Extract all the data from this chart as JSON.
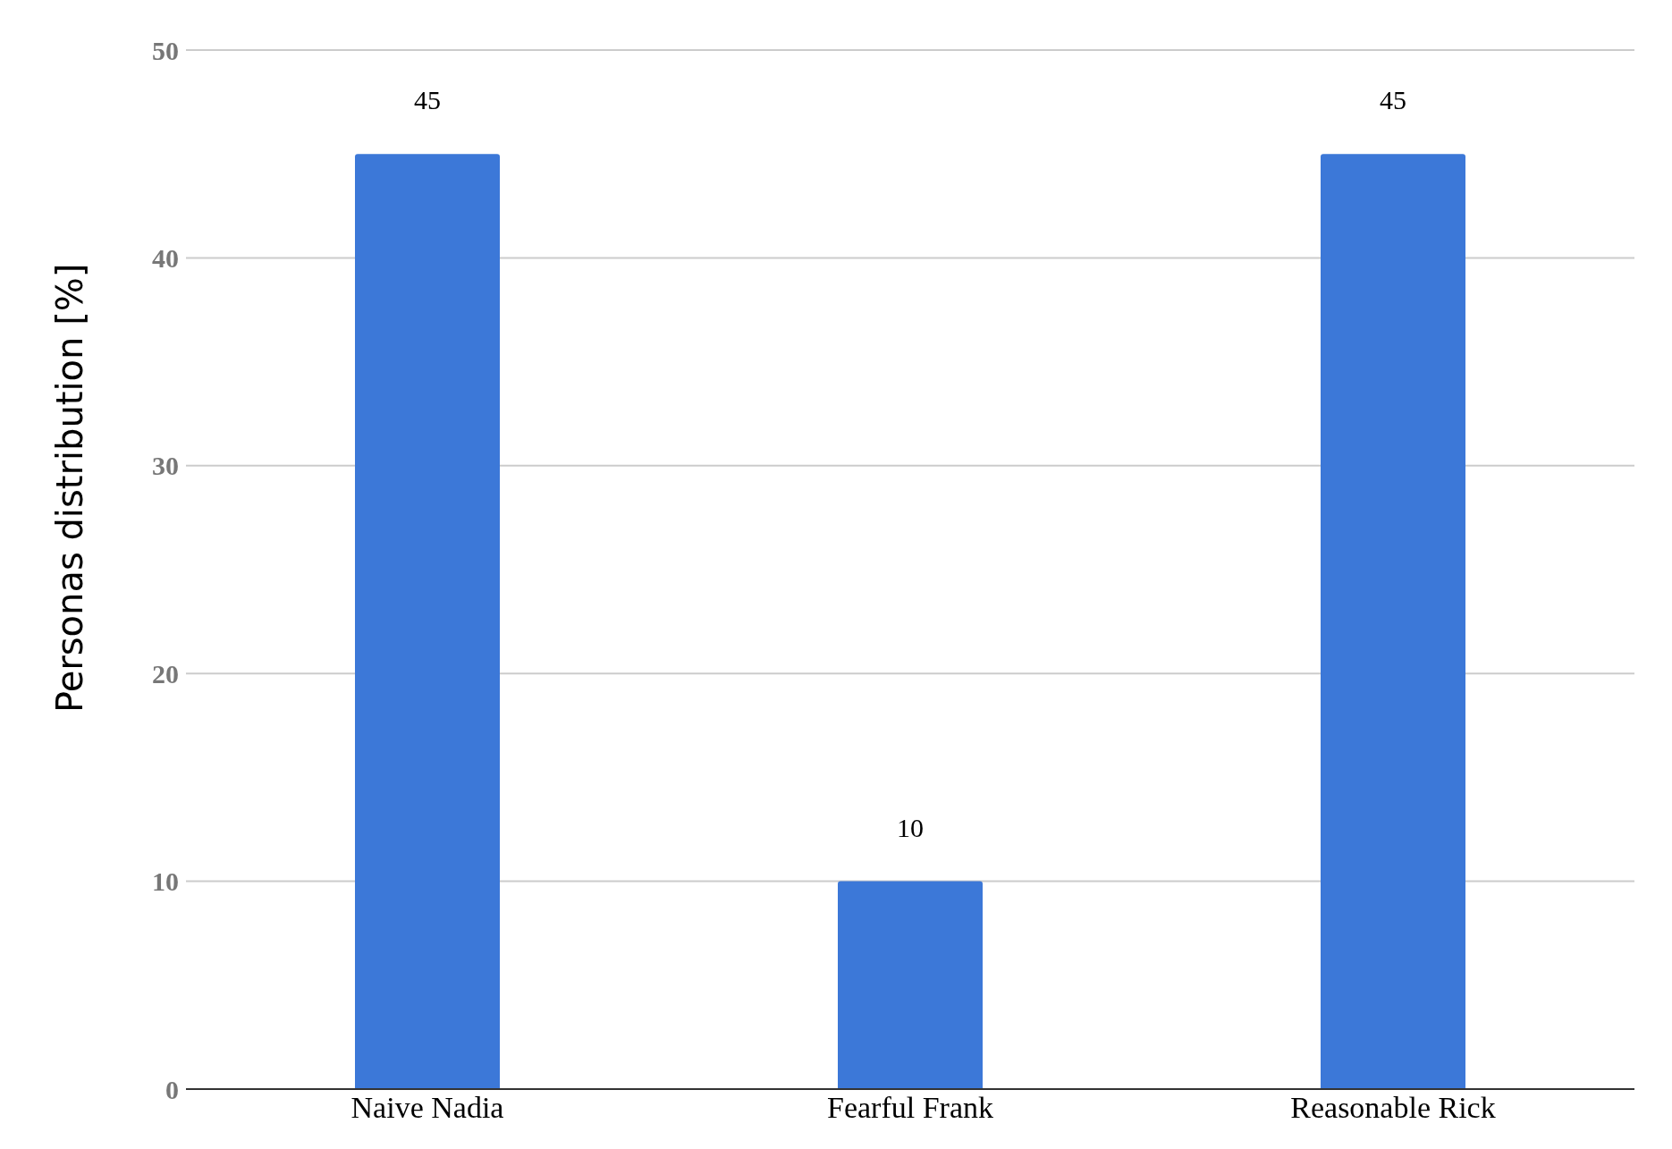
{
  "chart_data": {
    "type": "bar",
    "ylabel": "Personas distribution [%]",
    "categories": [
      "Naive Nadia",
      "Fearful Frank",
      "Reasonable Rick"
    ],
    "values": [
      45,
      10,
      45
    ],
    "color": "#3c78d8",
    "ylim": [
      0,
      50
    ],
    "yticks": [
      0,
      10,
      20,
      30,
      40,
      50
    ],
    "grid": "y",
    "data_labels": true
  }
}
